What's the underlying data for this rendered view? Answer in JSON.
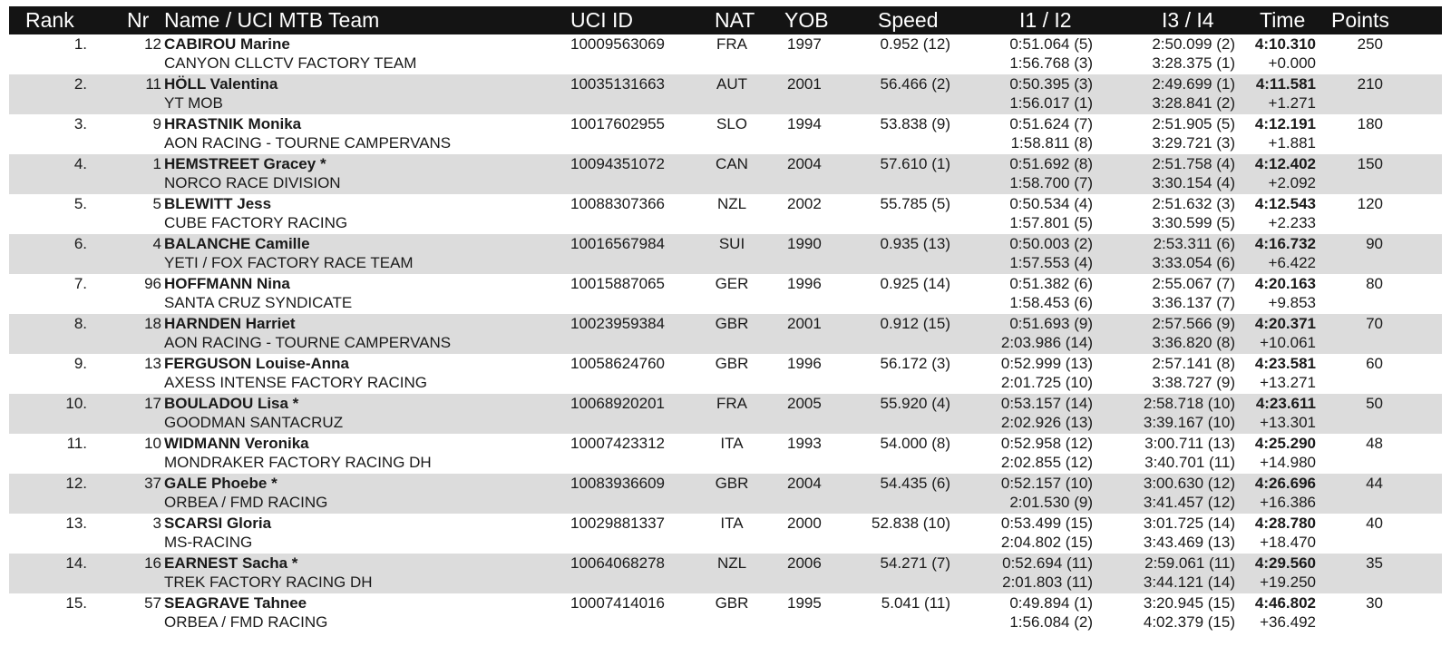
{
  "headers": {
    "rank": "Rank",
    "nr": "Nr",
    "name": "Name / UCI MTB Team",
    "uci_id": "UCI ID",
    "nat": "NAT",
    "yob": "YOB",
    "speed": "Speed",
    "i1i2": "I1 / I2",
    "i3i4": "I3 / I4",
    "time": "Time",
    "points": "Points"
  },
  "rows": [
    {
      "rank": "1.",
      "nr": "12",
      "name": "CABIROU Marine",
      "team": "CANYON CLLCTV FACTORY TEAM",
      "uci_id": "10009563069",
      "nat": "FRA",
      "yob": "1997",
      "speed": "0.952 (12)",
      "i1": "0:51.064 (5)",
      "i2": "1:56.768 (3)",
      "i3": "2:50.099 (2)",
      "i4": "3:28.375 (1)",
      "time": "4:10.310",
      "gap": "+0.000",
      "points": "250"
    },
    {
      "rank": "2.",
      "nr": "11",
      "name": "HÖLL Valentina",
      "team": "YT MOB",
      "uci_id": "10035131663",
      "nat": "AUT",
      "yob": "2001",
      "speed": "56.466 (2)",
      "i1": "0:50.395 (3)",
      "i2": "1:56.017 (1)",
      "i3": "2:49.699 (1)",
      "i4": "3:28.841 (2)",
      "time": "4:11.581",
      "gap": "+1.271",
      "points": "210"
    },
    {
      "rank": "3.",
      "nr": "9",
      "name": "HRASTNIK Monika",
      "team": "AON RACING - TOURNE CAMPERVANS",
      "uci_id": "10017602955",
      "nat": "SLO",
      "yob": "1994",
      "speed": "53.838 (9)",
      "i1": "0:51.624 (7)",
      "i2": "1:58.811 (8)",
      "i3": "2:51.905 (5)",
      "i4": "3:29.721 (3)",
      "time": "4:12.191",
      "gap": "+1.881",
      "points": "180"
    },
    {
      "rank": "4.",
      "nr": "1",
      "name": "HEMSTREET Gracey *",
      "team": "NORCO RACE DIVISION",
      "uci_id": "10094351072",
      "nat": "CAN",
      "yob": "2004",
      "speed": "57.610 (1)",
      "i1": "0:51.692 (8)",
      "i2": "1:58.700 (7)",
      "i3": "2:51.758 (4)",
      "i4": "3:30.154 (4)",
      "time": "4:12.402",
      "gap": "+2.092",
      "points": "150"
    },
    {
      "rank": "5.",
      "nr": "5",
      "name": "BLEWITT Jess",
      "team": "CUBE FACTORY RACING",
      "uci_id": "10088307366",
      "nat": "NZL",
      "yob": "2002",
      "speed": "55.785 (5)",
      "i1": "0:50.534 (4)",
      "i2": "1:57.801 (5)",
      "i3": "2:51.632 (3)",
      "i4": "3:30.599 (5)",
      "time": "4:12.543",
      "gap": "+2.233",
      "points": "120"
    },
    {
      "rank": "6.",
      "nr": "4",
      "name": "BALANCHE Camille",
      "team": "YETI / FOX FACTORY RACE TEAM",
      "uci_id": "10016567984",
      "nat": "SUI",
      "yob": "1990",
      "speed": "0.935 (13)",
      "i1": "0:50.003 (2)",
      "i2": "1:57.553 (4)",
      "i3": "2:53.311 (6)",
      "i4": "3:33.054 (6)",
      "time": "4:16.732",
      "gap": "+6.422",
      "points": "90"
    },
    {
      "rank": "7.",
      "nr": "96",
      "name": "HOFFMANN Nina",
      "team": "SANTA CRUZ SYNDICATE",
      "uci_id": "10015887065",
      "nat": "GER",
      "yob": "1996",
      "speed": "0.925 (14)",
      "i1": "0:51.382 (6)",
      "i2": "1:58.453 (6)",
      "i3": "2:55.067 (7)",
      "i4": "3:36.137 (7)",
      "time": "4:20.163",
      "gap": "+9.853",
      "points": "80"
    },
    {
      "rank": "8.",
      "nr": "18",
      "name": "HARNDEN Harriet",
      "team": "AON RACING - TOURNE CAMPERVANS",
      "uci_id": "10023959384",
      "nat": "GBR",
      "yob": "2001",
      "speed": "0.912 (15)",
      "i1": "0:51.693 (9)",
      "i2": "2:03.986 (14)",
      "i3": "2:57.566 (9)",
      "i4": "3:36.820 (8)",
      "time": "4:20.371",
      "gap": "+10.061",
      "points": "70"
    },
    {
      "rank": "9.",
      "nr": "13",
      "name": "FERGUSON Louise-Anna",
      "team": "AXESS INTENSE FACTORY RACING",
      "uci_id": "10058624760",
      "nat": "GBR",
      "yob": "1996",
      "speed": "56.172 (3)",
      "i1": "0:52.999 (13)",
      "i2": "2:01.725 (10)",
      "i3": "2:57.141 (8)",
      "i4": "3:38.727 (9)",
      "time": "4:23.581",
      "gap": "+13.271",
      "points": "60"
    },
    {
      "rank": "10.",
      "nr": "17",
      "name": "BOULADOU Lisa *",
      "team": "GOODMAN SANTACRUZ",
      "uci_id": "10068920201",
      "nat": "FRA",
      "yob": "2005",
      "speed": "55.920 (4)",
      "i1": "0:53.157 (14)",
      "i2": "2:02.926 (13)",
      "i3": "2:58.718 (10)",
      "i4": "3:39.167 (10)",
      "time": "4:23.611",
      "gap": "+13.301",
      "points": "50"
    },
    {
      "rank": "11.",
      "nr": "10",
      "name": "WIDMANN Veronika",
      "team": "MONDRAKER FACTORY RACING DH",
      "uci_id": "10007423312",
      "nat": "ITA",
      "yob": "1993",
      "speed": "54.000 (8)",
      "i1": "0:52.958 (12)",
      "i2": "2:02.855 (12)",
      "i3": "3:00.711 (13)",
      "i4": "3:40.701 (11)",
      "time": "4:25.290",
      "gap": "+14.980",
      "points": "48"
    },
    {
      "rank": "12.",
      "nr": "37",
      "name": "GALE Phoebe *",
      "team": "ORBEA / FMD RACING",
      "uci_id": "10083936609",
      "nat": "GBR",
      "yob": "2004",
      "speed": "54.435 (6)",
      "i1": "0:52.157 (10)",
      "i2": "2:01.530 (9)",
      "i3": "3:00.630 (12)",
      "i4": "3:41.457 (12)",
      "time": "4:26.696",
      "gap": "+16.386",
      "points": "44"
    },
    {
      "rank": "13.",
      "nr": "3",
      "name": "SCARSI Gloria",
      "team": "MS-RACING",
      "uci_id": "10029881337",
      "nat": "ITA",
      "yob": "2000",
      "speed": "52.838 (10)",
      "i1": "0:53.499 (15)",
      "i2": "2:04.802 (15)",
      "i3": "3:01.725 (14)",
      "i4": "3:43.469 (13)",
      "time": "4:28.780",
      "gap": "+18.470",
      "points": "40"
    },
    {
      "rank": "14.",
      "nr": "16",
      "name": "EARNEST Sacha *",
      "team": "TREK FACTORY RACING DH",
      "uci_id": "10064068278",
      "nat": "NZL",
      "yob": "2006",
      "speed": "54.271 (7)",
      "i1": "0:52.694 (11)",
      "i2": "2:01.803 (11)",
      "i3": "2:59.061 (11)",
      "i4": "3:44.121 (14)",
      "time": "4:29.560",
      "gap": "+19.250",
      "points": "35"
    },
    {
      "rank": "15.",
      "nr": "57",
      "name": "SEAGRAVE Tahnee",
      "team": "ORBEA / FMD RACING",
      "uci_id": "10007414016",
      "nat": "GBR",
      "yob": "1995",
      "speed": "5.041 (11)",
      "i1": "0:49.894 (1)",
      "i2": "1:56.084 (2)",
      "i3": "3:20.945 (15)",
      "i4": "4:02.379 (15)",
      "time": "4:46.802",
      "gap": "+36.492",
      "points": "30"
    }
  ]
}
